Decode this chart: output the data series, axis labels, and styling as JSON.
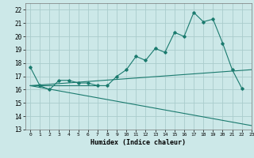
{
  "title": "",
  "xlabel": "Humidex (Indice chaleur)",
  "bg_color": "#cce8e8",
  "grid_color": "#aacccc",
  "line_color": "#1a7a6e",
  "xlim": [
    -0.5,
    23
  ],
  "ylim": [
    13,
    22.5
  ],
  "yticks": [
    13,
    14,
    15,
    16,
    17,
    18,
    19,
    20,
    21,
    22
  ],
  "xticks": [
    0,
    1,
    2,
    3,
    4,
    5,
    6,
    7,
    8,
    9,
    10,
    11,
    12,
    13,
    14,
    15,
    16,
    17,
    18,
    19,
    20,
    21,
    22,
    23
  ],
  "series": [
    {
      "x": [
        0,
        1,
        2,
        3,
        4,
        5,
        6,
        7,
        8,
        9,
        10,
        11,
        12,
        13,
        14,
        15,
        16,
        17,
        18,
        19,
        20,
        21,
        22
      ],
      "y": [
        17.7,
        16.3,
        16.0,
        16.7,
        16.7,
        16.5,
        16.5,
        16.3,
        16.3,
        17.0,
        17.5,
        18.5,
        18.2,
        19.1,
        18.8,
        20.3,
        20.0,
        21.8,
        21.1,
        21.3,
        19.5,
        17.5,
        16.1
      ],
      "marker": true
    },
    {
      "x": [
        0,
        23
      ],
      "y": [
        16.3,
        13.3
      ],
      "marker": false
    },
    {
      "x": [
        0,
        23
      ],
      "y": [
        16.3,
        17.5
      ],
      "marker": false
    },
    {
      "x": [
        0,
        7
      ],
      "y": [
        16.3,
        16.3
      ],
      "marker": false
    }
  ]
}
